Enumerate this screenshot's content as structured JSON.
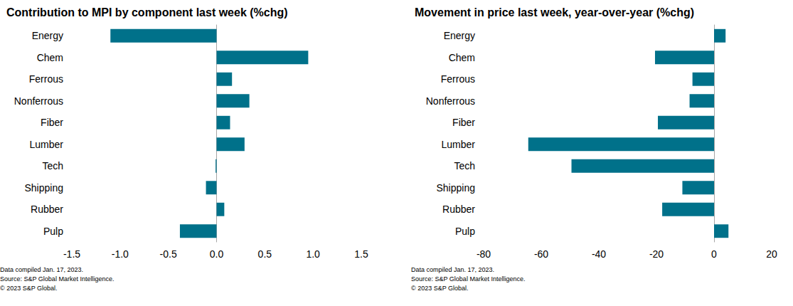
{
  "chart_data": [
    {
      "type": "bar",
      "orientation": "horizontal",
      "title": "Contribution to MPI by component last week (%chg)",
      "categories": [
        "Energy",
        "Chem",
        "Ferrous",
        "Nonferrous",
        "Fiber",
        "Lumber",
        "Tech",
        "Shipping",
        "Rubber",
        "Pulp"
      ],
      "values": [
        -1.1,
        0.95,
        0.16,
        0.34,
        0.14,
        0.29,
        -0.01,
        -0.11,
        0.08,
        -0.38
      ],
      "color": "#00718a",
      "xlim": [
        -1.5,
        1.5
      ],
      "xticks": [
        -1.5,
        {
          "value": -1,
          "label": "-1.0"
        },
        -0.5,
        {
          "value": 0,
          "label": "0.0"
        },
        0.5,
        {
          "value": 1,
          "label": "1.0"
        },
        1.5
      ],
      "grid": false,
      "annotations": [
        "Data compiled Jan. 17, 2023.",
        "Source: S&P Global Market Intelligence.",
        "© 2023 S&P Global."
      ]
    },
    {
      "type": "bar",
      "orientation": "horizontal",
      "title": "Movement in price last week, year-over-year (%chg)",
      "categories": [
        "Energy",
        "Chem",
        "Ferrous",
        "Nonferrous",
        "Fiber",
        "Lumber",
        "Tech",
        "Shipping",
        "Rubber",
        "Pulp"
      ],
      "values": [
        4,
        -20.5,
        -7.5,
        -8.5,
        -19.5,
        -64.5,
        -49.5,
        -11,
        -18,
        5
      ],
      "color": "#00718a",
      "xlim": [
        -80,
        20
      ],
      "xticks": [
        -80,
        -60,
        -40,
        -20,
        0,
        20
      ],
      "grid": false,
      "annotations": [
        "Data compiled Jan. 17, 2023.",
        "Source: S&P Global Market Intelligence.",
        "© 2023 S&P Global."
      ]
    }
  ]
}
